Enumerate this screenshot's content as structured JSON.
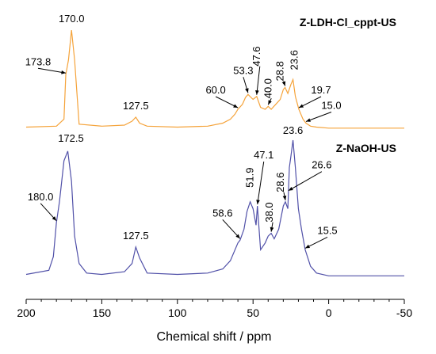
{
  "chart_data": {
    "type": "line",
    "xlabel": "Chemical shift / ppm",
    "ylabel": "",
    "xlim": [
      200,
      -50
    ],
    "x_ticks": [
      "200",
      "150",
      "100",
      "50",
      "0",
      "-50"
    ],
    "grid": false,
    "series": [
      {
        "name": "Z-LDH-Cl_cppt-US",
        "color": "#f5a33a",
        "x": [
          200,
          180,
          175,
          173.8,
          172,
          170,
          168,
          165,
          150,
          135,
          130,
          127.5,
          125,
          120,
          100,
          80,
          70,
          65,
          62,
          60,
          57,
          55,
          53.3,
          50,
          47.6,
          45,
          42,
          40,
          38,
          35,
          32,
          30,
          28.8,
          27,
          25,
          23.6,
          22,
          19.7,
          17,
          15,
          12,
          8,
          0,
          -20,
          -50
        ],
        "y": [
          0.02,
          0.03,
          0.1,
          0.55,
          0.7,
          1.0,
          0.7,
          0.05,
          0.03,
          0.04,
          0.08,
          0.12,
          0.06,
          0.03,
          0.02,
          0.03,
          0.06,
          0.1,
          0.15,
          0.2,
          0.25,
          0.32,
          0.35,
          0.3,
          0.33,
          0.22,
          0.2,
          0.23,
          0.2,
          0.25,
          0.3,
          0.4,
          0.42,
          0.36,
          0.45,
          0.5,
          0.33,
          0.2,
          0.1,
          0.06,
          0.03,
          0.02,
          0.01,
          0.01,
          0.01
        ]
      },
      {
        "name": "Z-NaOH-US",
        "color": "#5050a8",
        "x": [
          200,
          185,
          182,
          180.0,
          178,
          175,
          172.5,
          170,
          168,
          165,
          160,
          150,
          135,
          130,
          127.5,
          125,
          120,
          100,
          80,
          70,
          65,
          60,
          58.6,
          56,
          54,
          51.9,
          50,
          48,
          47.1,
          45,
          42,
          40,
          38.0,
          36,
          33,
          30,
          28.6,
          27,
          26,
          25,
          23.6,
          22,
          20,
          18,
          15.5,
          12,
          8,
          0,
          -20,
          -50
        ],
        "y": [
          0.02,
          0.05,
          0.15,
          0.4,
          0.55,
          0.85,
          0.92,
          0.7,
          0.3,
          0.1,
          0.03,
          0.02,
          0.04,
          0.1,
          0.22,
          0.14,
          0.03,
          0.02,
          0.03,
          0.06,
          0.12,
          0.25,
          0.27,
          0.35,
          0.48,
          0.55,
          0.5,
          0.38,
          0.52,
          0.2,
          0.25,
          0.3,
          0.32,
          0.28,
          0.35,
          0.52,
          0.55,
          0.5,
          0.8,
          0.88,
          1.0,
          0.8,
          0.5,
          0.35,
          0.2,
          0.08,
          0.03,
          0.01,
          0.01,
          0.01
        ]
      }
    ],
    "annotations": [
      {
        "series": 0,
        "text": "170.0",
        "x": 170.0
      },
      {
        "series": 0,
        "text": "173.8",
        "x": 173.8
      },
      {
        "series": 0,
        "text": "127.5",
        "x": 127.5
      },
      {
        "series": 0,
        "text": "60.0",
        "x": 60.0
      },
      {
        "series": 0,
        "text": "53.3",
        "x": 53.3
      },
      {
        "series": 0,
        "text": "47.6",
        "x": 47.6
      },
      {
        "series": 0,
        "text": "40.0",
        "x": 40.0
      },
      {
        "series": 0,
        "text": "28.8",
        "x": 28.8
      },
      {
        "series": 0,
        "text": "23.6",
        "x": 23.6
      },
      {
        "series": 0,
        "text": "19.7",
        "x": 19.7
      },
      {
        "series": 0,
        "text": "15.0",
        "x": 15.0
      },
      {
        "series": 1,
        "text": "172.5",
        "x": 172.5
      },
      {
        "series": 1,
        "text": "180.0",
        "x": 180.0
      },
      {
        "series": 1,
        "text": "127.5",
        "x": 127.5
      },
      {
        "series": 1,
        "text": "58.6",
        "x": 58.6
      },
      {
        "series": 1,
        "text": "51.9",
        "x": 51.9
      },
      {
        "series": 1,
        "text": "47.1",
        "x": 47.1
      },
      {
        "series": 1,
        "text": "38.0",
        "x": 38.0
      },
      {
        "series": 1,
        "text": "28.6",
        "x": 28.6
      },
      {
        "series": 1,
        "text": "23.6",
        "x": 23.6
      },
      {
        "series": 1,
        "text": "26.6",
        "x": 26.6
      },
      {
        "series": 1,
        "text": "15.5",
        "x": 15.5
      }
    ]
  }
}
